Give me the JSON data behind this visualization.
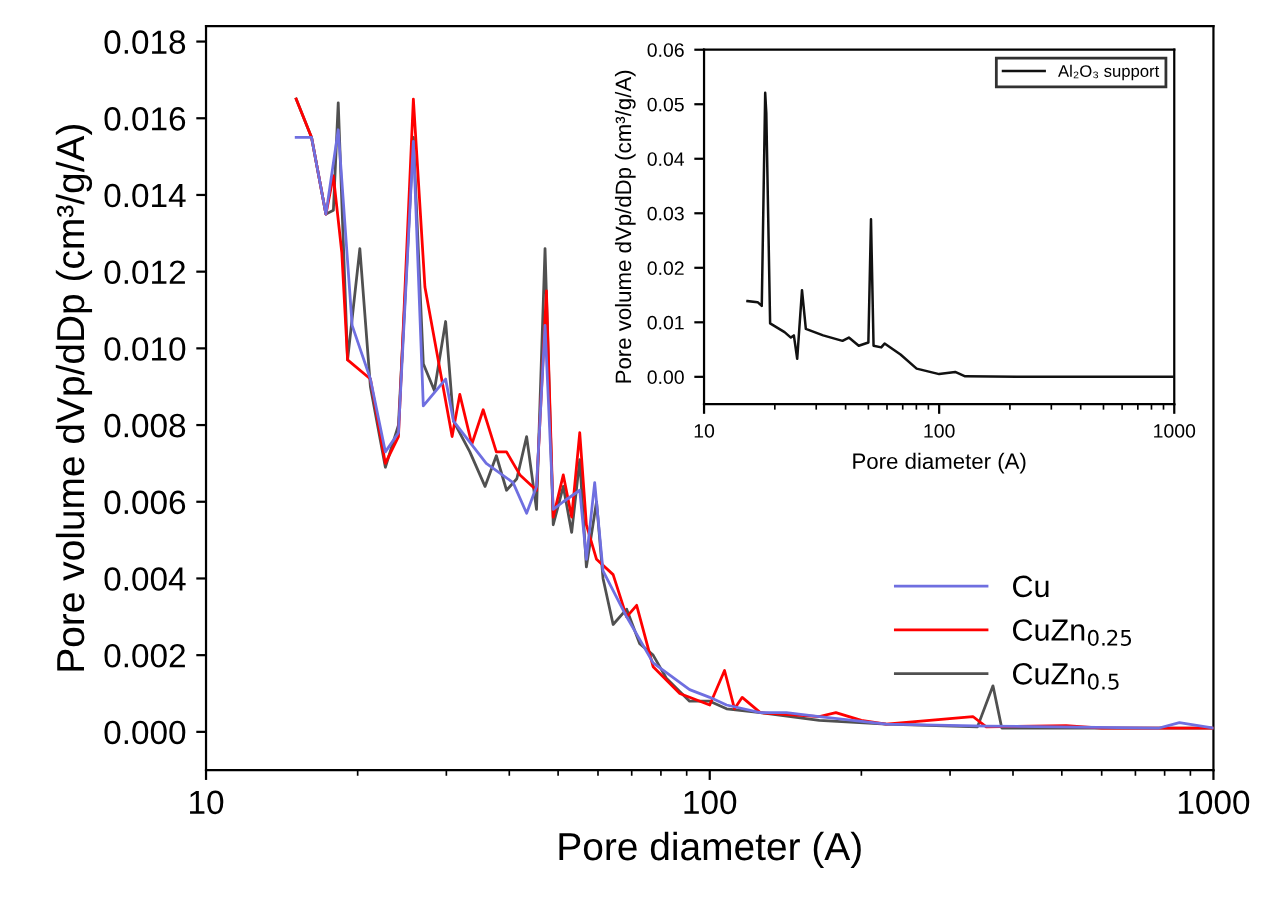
{
  "chart_data": [
    {
      "type": "line",
      "xlabel": "Pore diameter (A)",
      "ylabel": "Pore volume dVp/dDp (cm³/g/A)",
      "log": "x",
      "xlim": [
        10,
        1000
      ],
      "xticks": [
        10,
        100,
        1000
      ],
      "ylim": [
        -0.001,
        0.0184
      ],
      "yticks": [
        {
          "value": 0,
          "label": "0.000"
        },
        {
          "value": 0.002,
          "label": "0.002"
        },
        {
          "value": 0.004,
          "label": "0.004"
        },
        {
          "value": 0.006,
          "label": "0.006"
        },
        {
          "value": 0.008,
          "label": "0.008"
        },
        {
          "value": 0.01,
          "label": "0.010"
        },
        {
          "value": 0.012,
          "label": "0.012"
        },
        {
          "value": 0.014,
          "label": "0.014"
        },
        {
          "value": 0.016,
          "label": "0.016"
        },
        {
          "value": 0.018,
          "label": "0.018"
        }
      ],
      "grid": false,
      "legend": "bottom right",
      "marker": "none",
      "line_style": "solid",
      "series": [
        {
          "name": "Cu",
          "color": "#6f6fe0",
          "x": [
            15.1,
            16.0,
            16.2,
            17.3,
            18.3,
            19.5,
            21.2,
            22.7,
            24.1,
            25.8,
            27.0,
            29.9,
            31.0,
            36.0,
            40.7,
            43.3,
            45.3,
            47.1,
            48.9,
            51.2,
            55.2,
            56.9,
            59.1,
            61.4,
            68.4,
            77.2,
            91.2,
            100,
            108,
            126,
            142,
            165,
            224,
            354,
            780,
            856,
            1000
          ],
          "values": [
            0.0155,
            0.0155,
            0.0155,
            0.0135,
            0.0157,
            0.0106,
            0.0092,
            0.0073,
            0.0078,
            0.0154,
            0.0085,
            0.0092,
            0.0081,
            0.007,
            0.0065,
            0.0057,
            0.0064,
            0.0106,
            0.0058,
            0.006,
            0.0063,
            0.0045,
            0.0065,
            0.0042,
            0.003,
            0.0018,
            0.0011,
            0.0009,
            0.0007,
            0.0005,
            0.0005,
            0.0004,
            0.0002,
            0.00015,
            0.0001,
            0.00024,
            0.0001
          ]
        },
        {
          "name": "CuZn$_{0.25}$",
          "color": "#ff0000",
          "x": [
            15.1,
            16.2,
            17.3,
            17.9,
            18.6,
            19.1,
            21.2,
            22.7,
            24.1,
            25.8,
            27.2,
            30.8,
            31.9,
            33.7,
            35.5,
            37.7,
            39.5,
            42.0,
            45.3,
            47.4,
            48.9,
            51.2,
            53.2,
            55.2,
            56.9,
            59.6,
            64.3,
            68.4,
            71.6,
            77.2,
            87.2,
            100,
            107,
            112,
            116,
            126,
            165,
            178,
            200,
            224,
            333,
            354,
            510,
            600,
            1000
          ],
          "values": [
            0.0165,
            0.0155,
            0.0135,
            0.0145,
            0.0125,
            0.0097,
            0.0092,
            0.007,
            0.0077,
            0.0165,
            0.0116,
            0.0077,
            0.0088,
            0.0075,
            0.0084,
            0.0073,
            0.0073,
            0.0067,
            0.0063,
            0.0115,
            0.0056,
            0.0067,
            0.0056,
            0.0078,
            0.0054,
            0.0045,
            0.0041,
            0.003,
            0.0033,
            0.0017,
            0.001,
            0.0007,
            0.0016,
            0.0006,
            0.0009,
            0.0005,
            0.0004,
            0.0005,
            0.0003,
            0.0002,
            0.0004,
            0.00013,
            0.00016,
            0.0001,
            0.0001
          ]
        },
        {
          "name": "CuZn$_{0.5}$",
          "color": "#505050",
          "x": [
            15.1,
            16.2,
            17.3,
            17.9,
            18.3,
            19.1,
            20.2,
            21.2,
            22.7,
            24.1,
            25.8,
            27.0,
            28.4,
            29.9,
            31.0,
            33.4,
            35.8,
            37.7,
            39.5,
            41.4,
            43.3,
            45.3,
            47.1,
            48.9,
            51.2,
            53.2,
            55.2,
            56.9,
            59.6,
            61.4,
            64.3,
            68.4,
            72.6,
            77.2,
            82.0,
            91.2,
            100,
            108,
            126,
            165,
            224,
            340,
            365,
            380,
            1000
          ],
          "values": [
            0.0165,
            0.0155,
            0.0135,
            0.0136,
            0.0164,
            0.0097,
            0.0126,
            0.009,
            0.0069,
            0.008,
            0.0155,
            0.0096,
            0.0089,
            0.0107,
            0.0081,
            0.0073,
            0.0064,
            0.0072,
            0.0063,
            0.0066,
            0.0077,
            0.0058,
            0.0126,
            0.0054,
            0.0064,
            0.0052,
            0.0071,
            0.0043,
            0.006,
            0.004,
            0.0028,
            0.0032,
            0.0023,
            0.002,
            0.0014,
            0.0008,
            0.0008,
            0.0006,
            0.0005,
            0.0003,
            0.0002,
            0.00013,
            0.0012,
            0.0001,
            0.0001
          ]
        }
      ]
    },
    {
      "type": "line",
      "xlabel": "Pore diameter (A)",
      "ylabel": "Pore volume dVp/dDp (cm³/g/A)",
      "log": "x",
      "xlim": [
        10,
        1000
      ],
      "xticks": [
        10,
        100,
        1000
      ],
      "ylim": [
        -0.005,
        0.06
      ],
      "yticks": [
        {
          "value": 0,
          "label": "0.00"
        },
        {
          "value": 0.01,
          "label": "0.01"
        },
        {
          "value": 0.02,
          "label": "0.02"
        },
        {
          "value": 0.03,
          "label": "0.03"
        },
        {
          "value": 0.04,
          "label": "0.04"
        },
        {
          "value": 0.05,
          "label": "0.05"
        },
        {
          "value": 0.06,
          "label": "0.06"
        }
      ],
      "grid": false,
      "legend": "top right",
      "marker": "none",
      "line_style": "solid",
      "series": [
        {
          "name": "Al₂O₃ support",
          "color": "#111111",
          "x": [
            15.3,
            16.9,
            17.6,
            18.2,
            18.4,
            19.1,
            22.0,
            23.4,
            24.1,
            24.9,
            26.1,
            27.1,
            32.1,
            38.8,
            41.3,
            45.5,
            50.0,
            51.3,
            52.6,
            56.7,
            58.6,
            68.5,
            80.2,
            100,
            117,
            129,
            213,
            1000
          ],
          "values": [
            0.0139,
            0.0137,
            0.013,
            0.0521,
            0.0484,
            0.0098,
            0.0082,
            0.0072,
            0.0076,
            0.0033,
            0.0159,
            0.0088,
            0.0076,
            0.0066,
            0.0072,
            0.0057,
            0.0063,
            0.0289,
            0.0057,
            0.0054,
            0.0061,
            0.0041,
            0.0015,
            0.0005,
            0.0009,
            0.0001,
            0.0,
            0.0
          ]
        }
      ]
    }
  ]
}
